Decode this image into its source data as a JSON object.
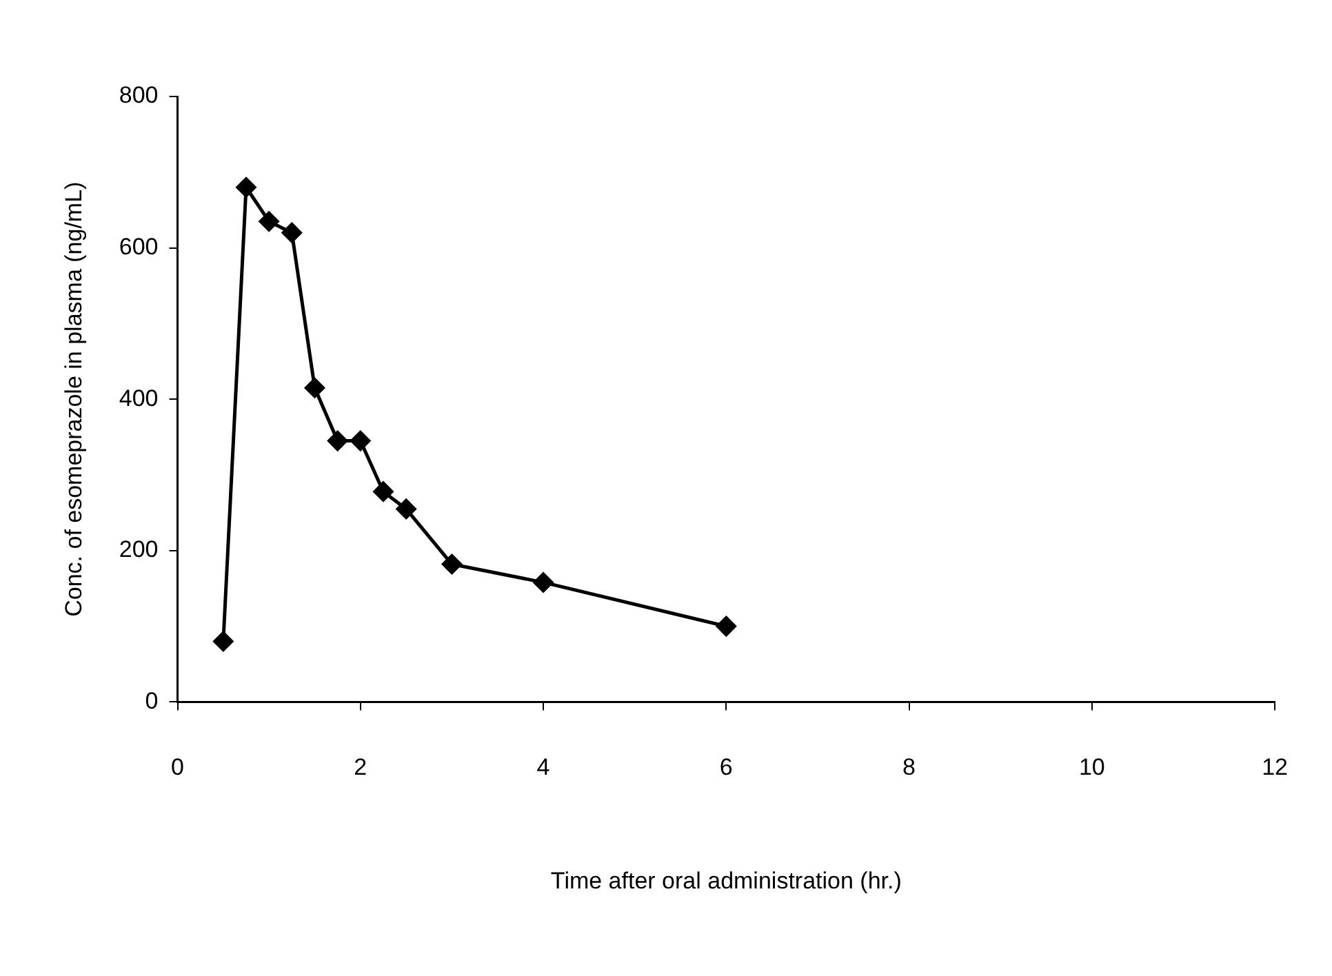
{
  "chart_data": {
    "type": "line",
    "xlabel": "Time after oral administration (hr.)",
    "ylabel": "Conc. of esomeprazole in plasma (ng/mL)",
    "x": [
      0.5,
      0.75,
      1.0,
      1.25,
      1.5,
      1.75,
      2.0,
      2.25,
      2.5,
      3.0,
      4.0,
      6.0
    ],
    "series": [
      {
        "color": "#000000",
        "values": [
          80,
          680,
          635,
          620,
          415,
          345,
          345,
          278,
          255,
          182,
          158,
          100
        ]
      }
    ],
    "xlim": [
      0,
      12
    ],
    "xticks": [
      0,
      2,
      4,
      6,
      8,
      10,
      12
    ],
    "ylim": [
      0,
      800
    ],
    "yticks": [
      0,
      200,
      400,
      600,
      800
    ],
    "grid": false,
    "legend": false,
    "marker": "diamond",
    "line_style": "solid"
  }
}
